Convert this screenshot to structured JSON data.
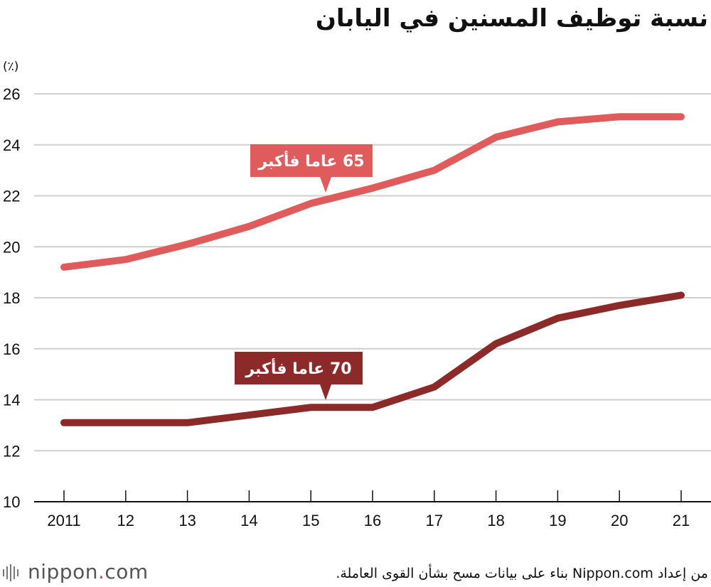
{
  "chart_data": {
    "type": "line",
    "title": "نسبة توظيف المسنين في اليابان",
    "ylabel": "(٪)",
    "xlabel": "",
    "categories": [
      "2011",
      "12",
      "13",
      "14",
      "15",
      "16",
      "17",
      "18",
      "19",
      "20",
      "21"
    ],
    "ylim": [
      10,
      26
    ],
    "yticks": [
      10,
      12,
      14,
      16,
      18,
      20,
      22,
      24,
      26
    ],
    "grid": true,
    "series": [
      {
        "name": "65 عاما فأكبر",
        "color": "#e05c5c",
        "values": [
          19.2,
          19.5,
          20.1,
          20.8,
          21.7,
          22.3,
          23.0,
          24.3,
          24.9,
          25.1,
          25.1
        ]
      },
      {
        "name": "70 عاما فأكبر",
        "color": "#8c2a2a",
        "values": [
          13.1,
          13.1,
          13.1,
          13.4,
          13.7,
          13.7,
          14.5,
          16.2,
          17.2,
          17.7,
          18.1
        ]
      }
    ]
  },
  "footer": {
    "logo_text": "nippon",
    "logo_suffix": ".com",
    "source": "من إعداد Nippon.com بناء على بيانات مسح بشأن القوى العاملة."
  }
}
